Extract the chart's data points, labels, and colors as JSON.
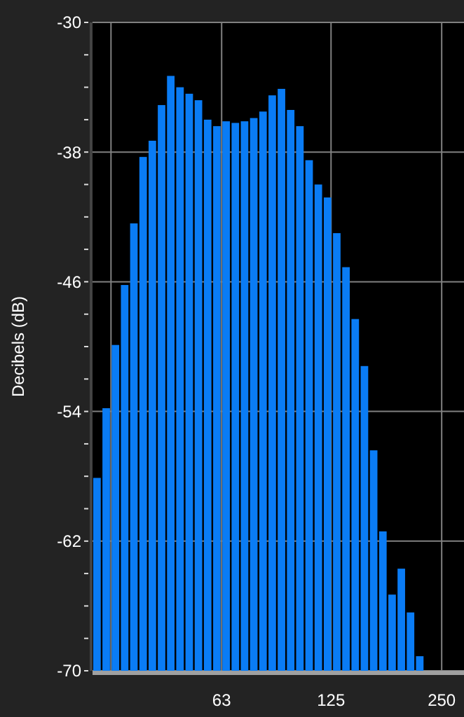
{
  "chart_data": {
    "type": "bar",
    "ylabel": "Decibels (dB)",
    "color": "#0a7cf5",
    "x": [
      28.88,
      30.6,
      32.42,
      34.35,
      36.39,
      38.56,
      40.85,
      43.28,
      45.85,
      48.58,
      51.47,
      54.53,
      57.77,
      61.21,
      64.85,
      68.71,
      72.79,
      77.12,
      81.71,
      86.57,
      91.71,
      97.17,
      102.94,
      109.06,
      115.55,
      122.42,
      129.7,
      137.41,
      145.58,
      154.23,
      163.4,
      173.12,
      183.41,
      194.32,
      205.87,
      218.11
    ],
    "values": [
      11.9,
      16.2,
      20.1,
      23.8,
      27.6,
      31.7,
      32.7,
      34.9,
      36.7,
      36.0,
      35.6,
      35.2,
      34.0,
      33.6,
      33.9,
      33.8,
      33.9,
      34.1,
      34.5,
      35.5,
      35.9,
      34.6,
      33.6,
      31.5,
      30.0,
      29.2,
      27.0,
      24.9,
      21.7,
      18.8,
      13.6,
      8.6,
      4.7,
      6.3,
      3.6,
      0.9
    ],
    "base": [
      -70,
      -70,
      -70,
      -70,
      -70,
      -70,
      -70,
      -70,
      -70,
      -70,
      -70,
      -70,
      -70,
      -70,
      -70,
      -70,
      -70,
      -70,
      -70,
      -70,
      -70,
      -70,
      -70,
      -70,
      -70,
      -70,
      -70,
      -70,
      -70,
      -70,
      -70,
      -70,
      -70,
      -70,
      -70,
      -70
    ],
    "log": "x",
    "xlim": [
      28.06,
      287.5
    ],
    "xticks": [
      {
        "value": 31.5,
        "label": null
      },
      63,
      125,
      250
    ],
    "ylim": [
      -70,
      -30
    ],
    "yticks": [
      -70,
      {
        "value": -68,
        "label": null
      },
      {
        "value": -66,
        "label": null
      },
      {
        "value": -64,
        "label": null
      },
      -62,
      {
        "value": -60,
        "label": null
      },
      {
        "value": -58,
        "label": null
      },
      {
        "value": -56,
        "label": null
      },
      -54,
      {
        "value": -52,
        "label": null
      },
      {
        "value": -50,
        "label": null
      },
      {
        "value": -48,
        "label": null
      },
      -46,
      {
        "value": -44,
        "label": null
      },
      {
        "value": -42,
        "label": null
      },
      {
        "value": -40,
        "label": null
      },
      -38,
      {
        "value": -36,
        "label": null
      },
      {
        "value": -34,
        "label": null
      },
      {
        "value": -32,
        "label": null
      },
      -30
    ],
    "grid": true
  }
}
